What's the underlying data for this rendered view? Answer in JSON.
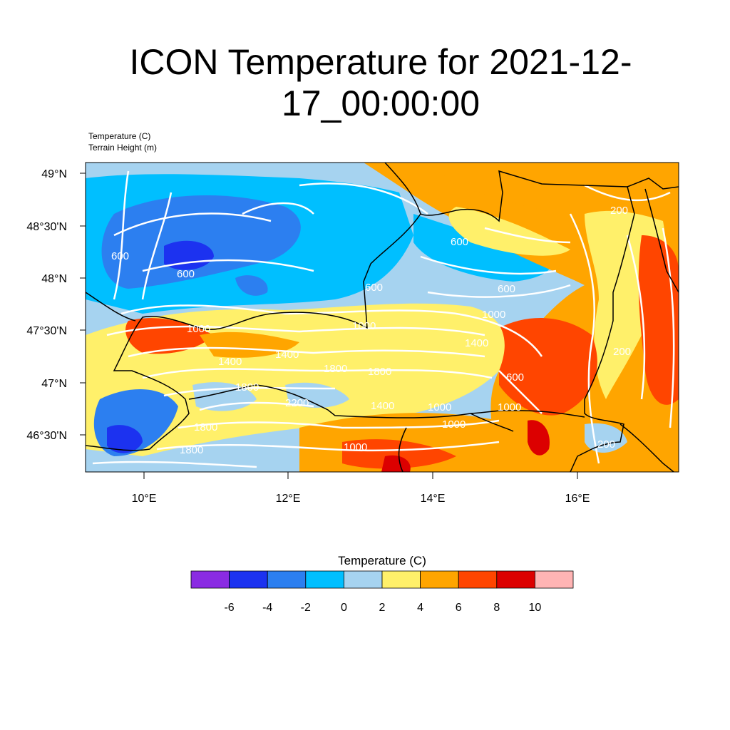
{
  "title": "ICON Temperature for 2021-12-17_00:00:00",
  "subtitle_1": "Temperature   (C)",
  "subtitle_2": "Terrain Height   (m)",
  "lat_ticks": [
    "49°N",
    "48°30'N",
    "48°N",
    "47°30'N",
    "47°N",
    "46°30'N"
  ],
  "lon_ticks": [
    "10°E",
    "12°E",
    "14°E",
    "16°E"
  ],
  "contour_labels": [
    "600",
    "600",
    "600",
    "600",
    "600",
    "200",
    "1000",
    "1000",
    "1400",
    "1400",
    "1400",
    "1800",
    "1800",
    "2200",
    "1800",
    "1400",
    "1000",
    "1000",
    "1000",
    "1800",
    "1000",
    "200",
    "1000",
    "200",
    "600",
    "1800"
  ],
  "colorbar": {
    "title": "Temperature  (C)",
    "ticks": [
      "-6",
      "-4",
      "-2",
      "0",
      "2",
      "4",
      "6",
      "8",
      "10"
    ],
    "colors": [
      "#8a2be2",
      "#1c32f0",
      "#2c7ff0",
      "#00bfff",
      "#a6d3f0",
      "#fff06a",
      "#ffa500",
      "#ff4500",
      "#dc0000",
      "#ffb4b4"
    ]
  }
}
